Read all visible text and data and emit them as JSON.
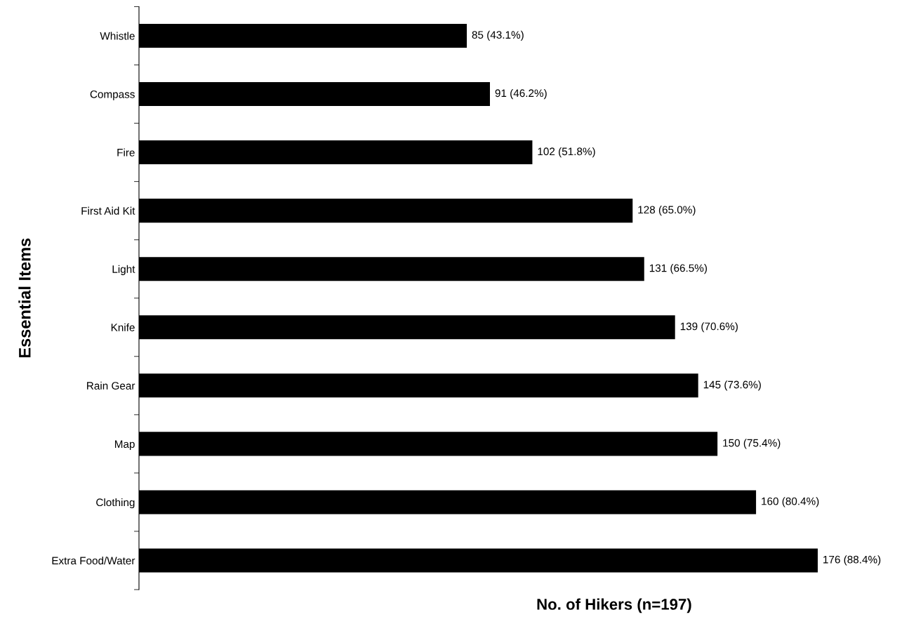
{
  "chart_data": {
    "type": "bar",
    "orientation": "horizontal",
    "xlabel": "No. of Hikers (n=197)",
    "ylabel": "Essential Items",
    "categories": [
      "Whistle",
      "Compass",
      "Fire",
      "First Aid Kit",
      "Light",
      "Knife",
      "Rain Gear",
      "Map",
      "Clothing",
      "Extra Food/Water"
    ],
    "values": [
      85,
      91,
      102,
      128,
      131,
      139,
      145,
      150,
      160,
      176
    ],
    "value_labels": [
      "85 (43.1%)",
      "91 (46.2%)",
      "102 (51.8%)",
      "128 (65.0%)",
      "131 (66.5%)",
      "139 (70.6%)",
      "145 (73.6%)",
      "150 (75.4%)",
      "160 (80.4%)",
      "176 (88.4%)"
    ],
    "color": "#000000",
    "grid": false,
    "legend": false,
    "tick_labels": "y"
  }
}
